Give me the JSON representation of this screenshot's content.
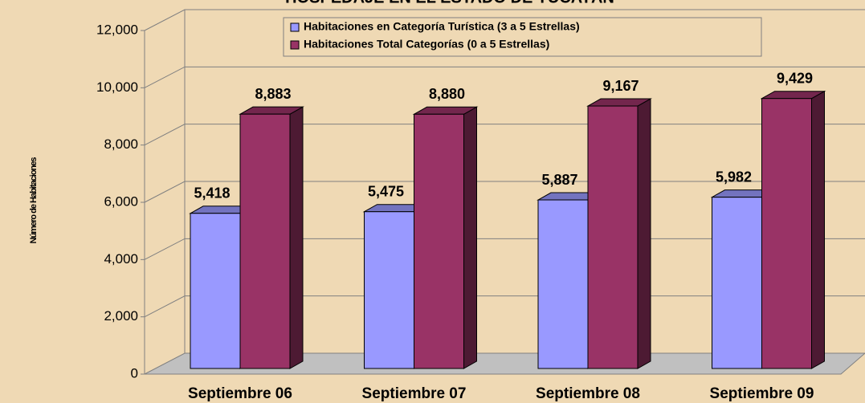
{
  "chart_data": {
    "type": "bar3d",
    "title": "HOSPEDAJE EN EL ESTADO DE YUCATÁN",
    "y_axis_label": "Número de Habitaciones",
    "categories": [
      "Septiembre 06",
      "Septiembre 07",
      "Septiembre 08",
      "Septiembre 09"
    ],
    "series": [
      {
        "name": "Habitaciones en Categoría Turística (3 a 5 Estrellas)",
        "color": "#9999ff",
        "values": [
          5418,
          5475,
          5887,
          5982
        ],
        "value_labels": [
          "5,418",
          "5,475",
          "5,887",
          "5,982"
        ]
      },
      {
        "name": "Habitaciones Total Categorías (0 a 5 Estrellas)",
        "color": "#993366",
        "values": [
          8883,
          8880,
          9167,
          9429
        ],
        "value_labels": [
          "8,883",
          "8,880",
          "9,167",
          "9,429"
        ]
      }
    ],
    "ylim": [
      0,
      12000
    ],
    "yticks": [
      0,
      {
        "value": 2000,
        "label": "2,000"
      },
      {
        "value": 4000,
        "label": "4,000"
      },
      {
        "value": 6000,
        "label": "6,000"
      },
      {
        "value": 8000,
        "label": "8,000"
      },
      {
        "value": 10000,
        "label": "10,000"
      },
      {
        "value": 12000,
        "label": "12,000"
      }
    ],
    "grid": true
  }
}
